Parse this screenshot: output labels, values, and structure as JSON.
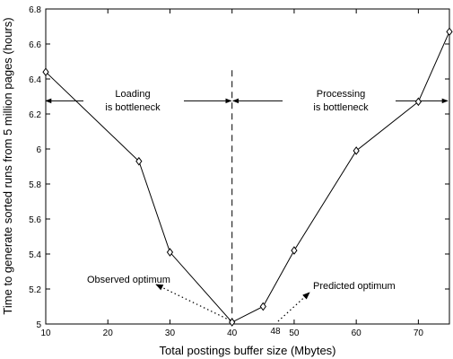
{
  "chart_data": {
    "type": "line",
    "title": "",
    "xlabel": "Total postings buffer size (Mbytes)",
    "ylabel": "Time to generate sorted runs from 5 million pages (hours)",
    "xlim": [
      10,
      75
    ],
    "ylim": [
      5.0,
      6.8
    ],
    "xticks": [
      10,
      20,
      30,
      40,
      50,
      60,
      70
    ],
    "yticks": [
      5,
      5.2,
      5.4,
      5.6,
      5.8,
      6,
      6.2,
      6.4,
      6.6,
      6.8
    ],
    "grid": false,
    "series": [
      {
        "marker": "diamond",
        "x": [
          10,
          25,
          30,
          40,
          45,
          50,
          60,
          70,
          75
        ],
        "y": [
          6.44,
          5.93,
          5.41,
          5.01,
          5.1,
          5.42,
          5.99,
          6.27,
          6.67
        ]
      }
    ],
    "annotations": {
      "divider_x": 40,
      "loading_label": [
        "Loading",
        "is bottleneck"
      ],
      "processing_label": [
        "Processing",
        "is bottleneck"
      ],
      "observed_label": "Observed optimum",
      "predicted_label": "Predicted optimum",
      "predicted_tick": "48"
    }
  }
}
